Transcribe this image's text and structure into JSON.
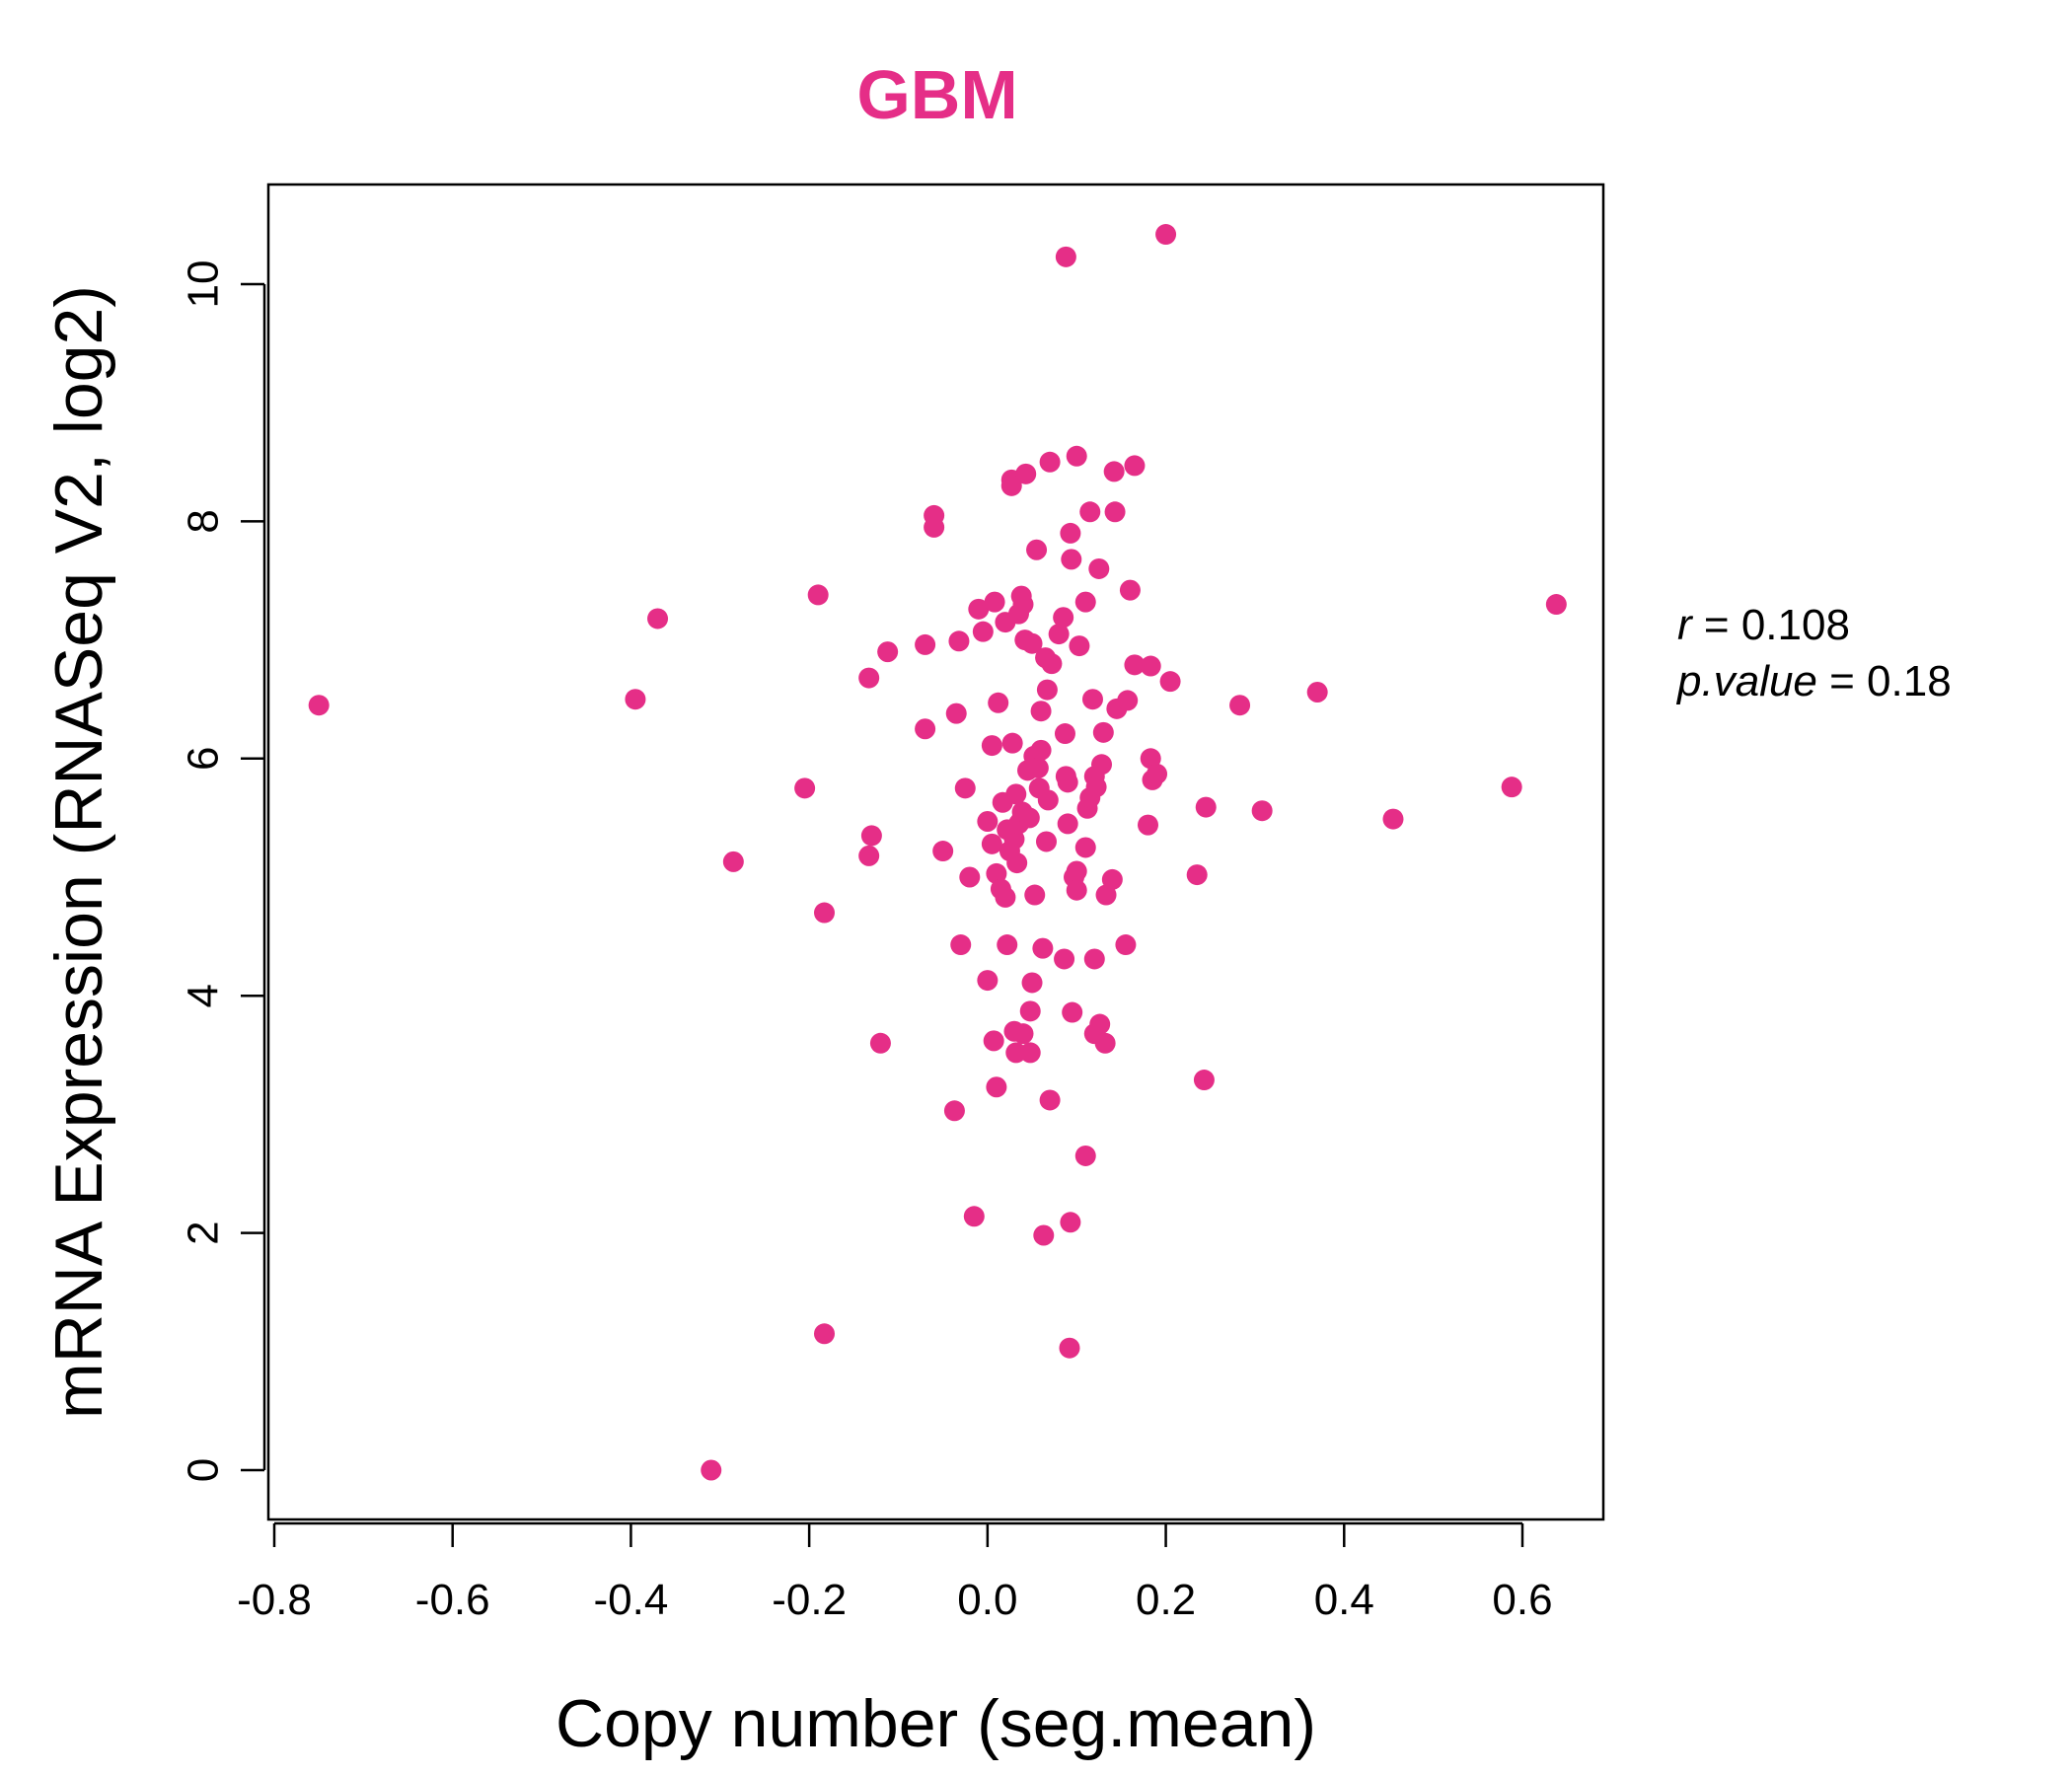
{
  "chart_data": {
    "type": "scatter",
    "title": "GBM",
    "title_color": "#e52e87",
    "point_color": "#e52e87",
    "xlabel": "Copy number (seg.mean)",
    "ylabel": "mRNA Expression (RNASeq V2, log2)",
    "xlim": [
      -0.8,
      0.7
    ],
    "ylim": [
      -0.4,
      10.9
    ],
    "x_ticks": [
      -0.8,
      -0.6,
      -0.4,
      -0.2,
      0.0,
      0.2,
      0.4,
      0.6
    ],
    "x_tick_labels": [
      "-0.8",
      "-0.6",
      "-0.4",
      "-0.2",
      "0.0",
      "0.2",
      "0.4",
      "0.6"
    ],
    "y_ticks": [
      0,
      2,
      4,
      6,
      8,
      10
    ],
    "y_tick_labels": [
      "0",
      "2",
      "4",
      "6",
      "8",
      "10"
    ],
    "grid": false,
    "stats": {
      "r_label": "r",
      "r_value": "0.108",
      "p_label": "p.value",
      "p_value": "0.18"
    },
    "points": [
      [
        -0.75,
        6.45
      ],
      [
        -0.395,
        6.5
      ],
      [
        -0.37,
        7.18
      ],
      [
        -0.31,
        0.0
      ],
      [
        -0.285,
        5.13
      ],
      [
        -0.205,
        5.75
      ],
      [
        -0.19,
        7.38
      ],
      [
        -0.183,
        4.7
      ],
      [
        -0.183,
        1.15
      ],
      [
        -0.133,
        6.68
      ],
      [
        -0.133,
        5.18
      ],
      [
        -0.13,
        5.35
      ],
      [
        -0.12,
        3.6
      ],
      [
        -0.112,
        6.9
      ],
      [
        -0.07,
        6.96
      ],
      [
        -0.07,
        6.25
      ],
      [
        -0.06,
        8.05
      ],
      [
        -0.06,
        7.95
      ],
      [
        -0.05,
        5.22
      ],
      [
        -0.037,
        3.03
      ],
      [
        -0.035,
        6.38
      ],
      [
        -0.032,
        6.99
      ],
      [
        -0.03,
        4.43
      ],
      [
        -0.025,
        5.75
      ],
      [
        -0.02,
        5.0
      ],
      [
        -0.015,
        2.14
      ],
      [
        -0.01,
        7.26
      ],
      [
        -0.005,
        7.07
      ],
      [
        0.0,
        5.47
      ],
      [
        0.0,
        4.13
      ],
      [
        0.005,
        6.11
      ],
      [
        0.005,
        5.28
      ],
      [
        0.007,
        3.62
      ],
      [
        0.008,
        7.32
      ],
      [
        0.01,
        5.03
      ],
      [
        0.01,
        3.23
      ],
      [
        0.012,
        6.47
      ],
      [
        0.015,
        4.9
      ],
      [
        0.017,
        5.63
      ],
      [
        0.02,
        7.15
      ],
      [
        0.02,
        4.83
      ],
      [
        0.022,
        5.4
      ],
      [
        0.022,
        4.43
      ],
      [
        0.025,
        5.22
      ],
      [
        0.027,
        8.35
      ],
      [
        0.027,
        8.3
      ],
      [
        0.028,
        6.13
      ],
      [
        0.03,
        3.7
      ],
      [
        0.03,
        5.32
      ],
      [
        0.032,
        5.7
      ],
      [
        0.032,
        3.52
      ],
      [
        0.033,
        5.12
      ],
      [
        0.035,
        7.22
      ],
      [
        0.035,
        5.45
      ],
      [
        0.037,
        5.47
      ],
      [
        0.038,
        7.37
      ],
      [
        0.039,
        5.55
      ],
      [
        0.04,
        7.3
      ],
      [
        0.04,
        3.68
      ],
      [
        0.042,
        7.0
      ],
      [
        0.043,
        8.4
      ],
      [
        0.045,
        5.9
      ],
      [
        0.047,
        5.5
      ],
      [
        0.048,
        3.87
      ],
      [
        0.048,
        3.52
      ],
      [
        0.05,
        4.11
      ],
      [
        0.05,
        6.97
      ],
      [
        0.052,
        6.02
      ],
      [
        0.053,
        4.85
      ],
      [
        0.055,
        7.76
      ],
      [
        0.057,
        5.92
      ],
      [
        0.058,
        5.75
      ],
      [
        0.06,
        6.07
      ],
      [
        0.06,
        6.4
      ],
      [
        0.062,
        4.4
      ],
      [
        0.063,
        1.98
      ],
      [
        0.065,
        6.85
      ],
      [
        0.066,
        5.3
      ],
      [
        0.067,
        6.58
      ],
      [
        0.068,
        5.65
      ],
      [
        0.07,
        8.5
      ],
      [
        0.07,
        3.12
      ],
      [
        0.072,
        6.8
      ],
      [
        0.08,
        7.05
      ],
      [
        0.085,
        7.19
      ],
      [
        0.086,
        4.31
      ],
      [
        0.087,
        6.21
      ],
      [
        0.088,
        10.23
      ],
      [
        0.088,
        5.85
      ],
      [
        0.09,
        5.45
      ],
      [
        0.09,
        5.8
      ],
      [
        0.092,
        1.03
      ],
      [
        0.093,
        2.09
      ],
      [
        0.093,
        7.9
      ],
      [
        0.094,
        7.68
      ],
      [
        0.095,
        3.86
      ],
      [
        0.097,
        5.0
      ],
      [
        0.1,
        8.55
      ],
      [
        0.1,
        4.89
      ],
      [
        0.1,
        5.05
      ],
      [
        0.103,
        6.95
      ],
      [
        0.11,
        7.32
      ],
      [
        0.11,
        5.25
      ],
      [
        0.11,
        2.65
      ],
      [
        0.112,
        5.58
      ],
      [
        0.115,
        8.08
      ],
      [
        0.115,
        5.67
      ],
      [
        0.118,
        6.5
      ],
      [
        0.12,
        5.85
      ],
      [
        0.12,
        4.31
      ],
      [
        0.12,
        3.68
      ],
      [
        0.122,
        5.76
      ],
      [
        0.125,
        7.6
      ],
      [
        0.126,
        3.76
      ],
      [
        0.128,
        5.95
      ],
      [
        0.13,
        6.22
      ],
      [
        0.132,
        3.6
      ],
      [
        0.133,
        4.85
      ],
      [
        0.14,
        4.98
      ],
      [
        0.142,
        8.42
      ],
      [
        0.143,
        8.08
      ],
      [
        0.145,
        6.42
      ],
      [
        0.155,
        4.43
      ],
      [
        0.157,
        6.49
      ],
      [
        0.16,
        7.42
      ],
      [
        0.165,
        8.47
      ],
      [
        0.165,
        6.79
      ],
      [
        0.18,
        5.44
      ],
      [
        0.183,
        6.78
      ],
      [
        0.183,
        6.0
      ],
      [
        0.185,
        5.82
      ],
      [
        0.19,
        5.87
      ],
      [
        0.2,
        10.42
      ],
      [
        0.205,
        6.65
      ],
      [
        0.235,
        5.02
      ],
      [
        0.243,
        3.29
      ],
      [
        0.245,
        5.59
      ],
      [
        0.283,
        6.45
      ],
      [
        0.308,
        5.56
      ],
      [
        0.37,
        6.56
      ],
      [
        0.455,
        5.49
      ],
      [
        0.588,
        5.76
      ],
      [
        0.638,
        7.3
      ]
    ]
  }
}
